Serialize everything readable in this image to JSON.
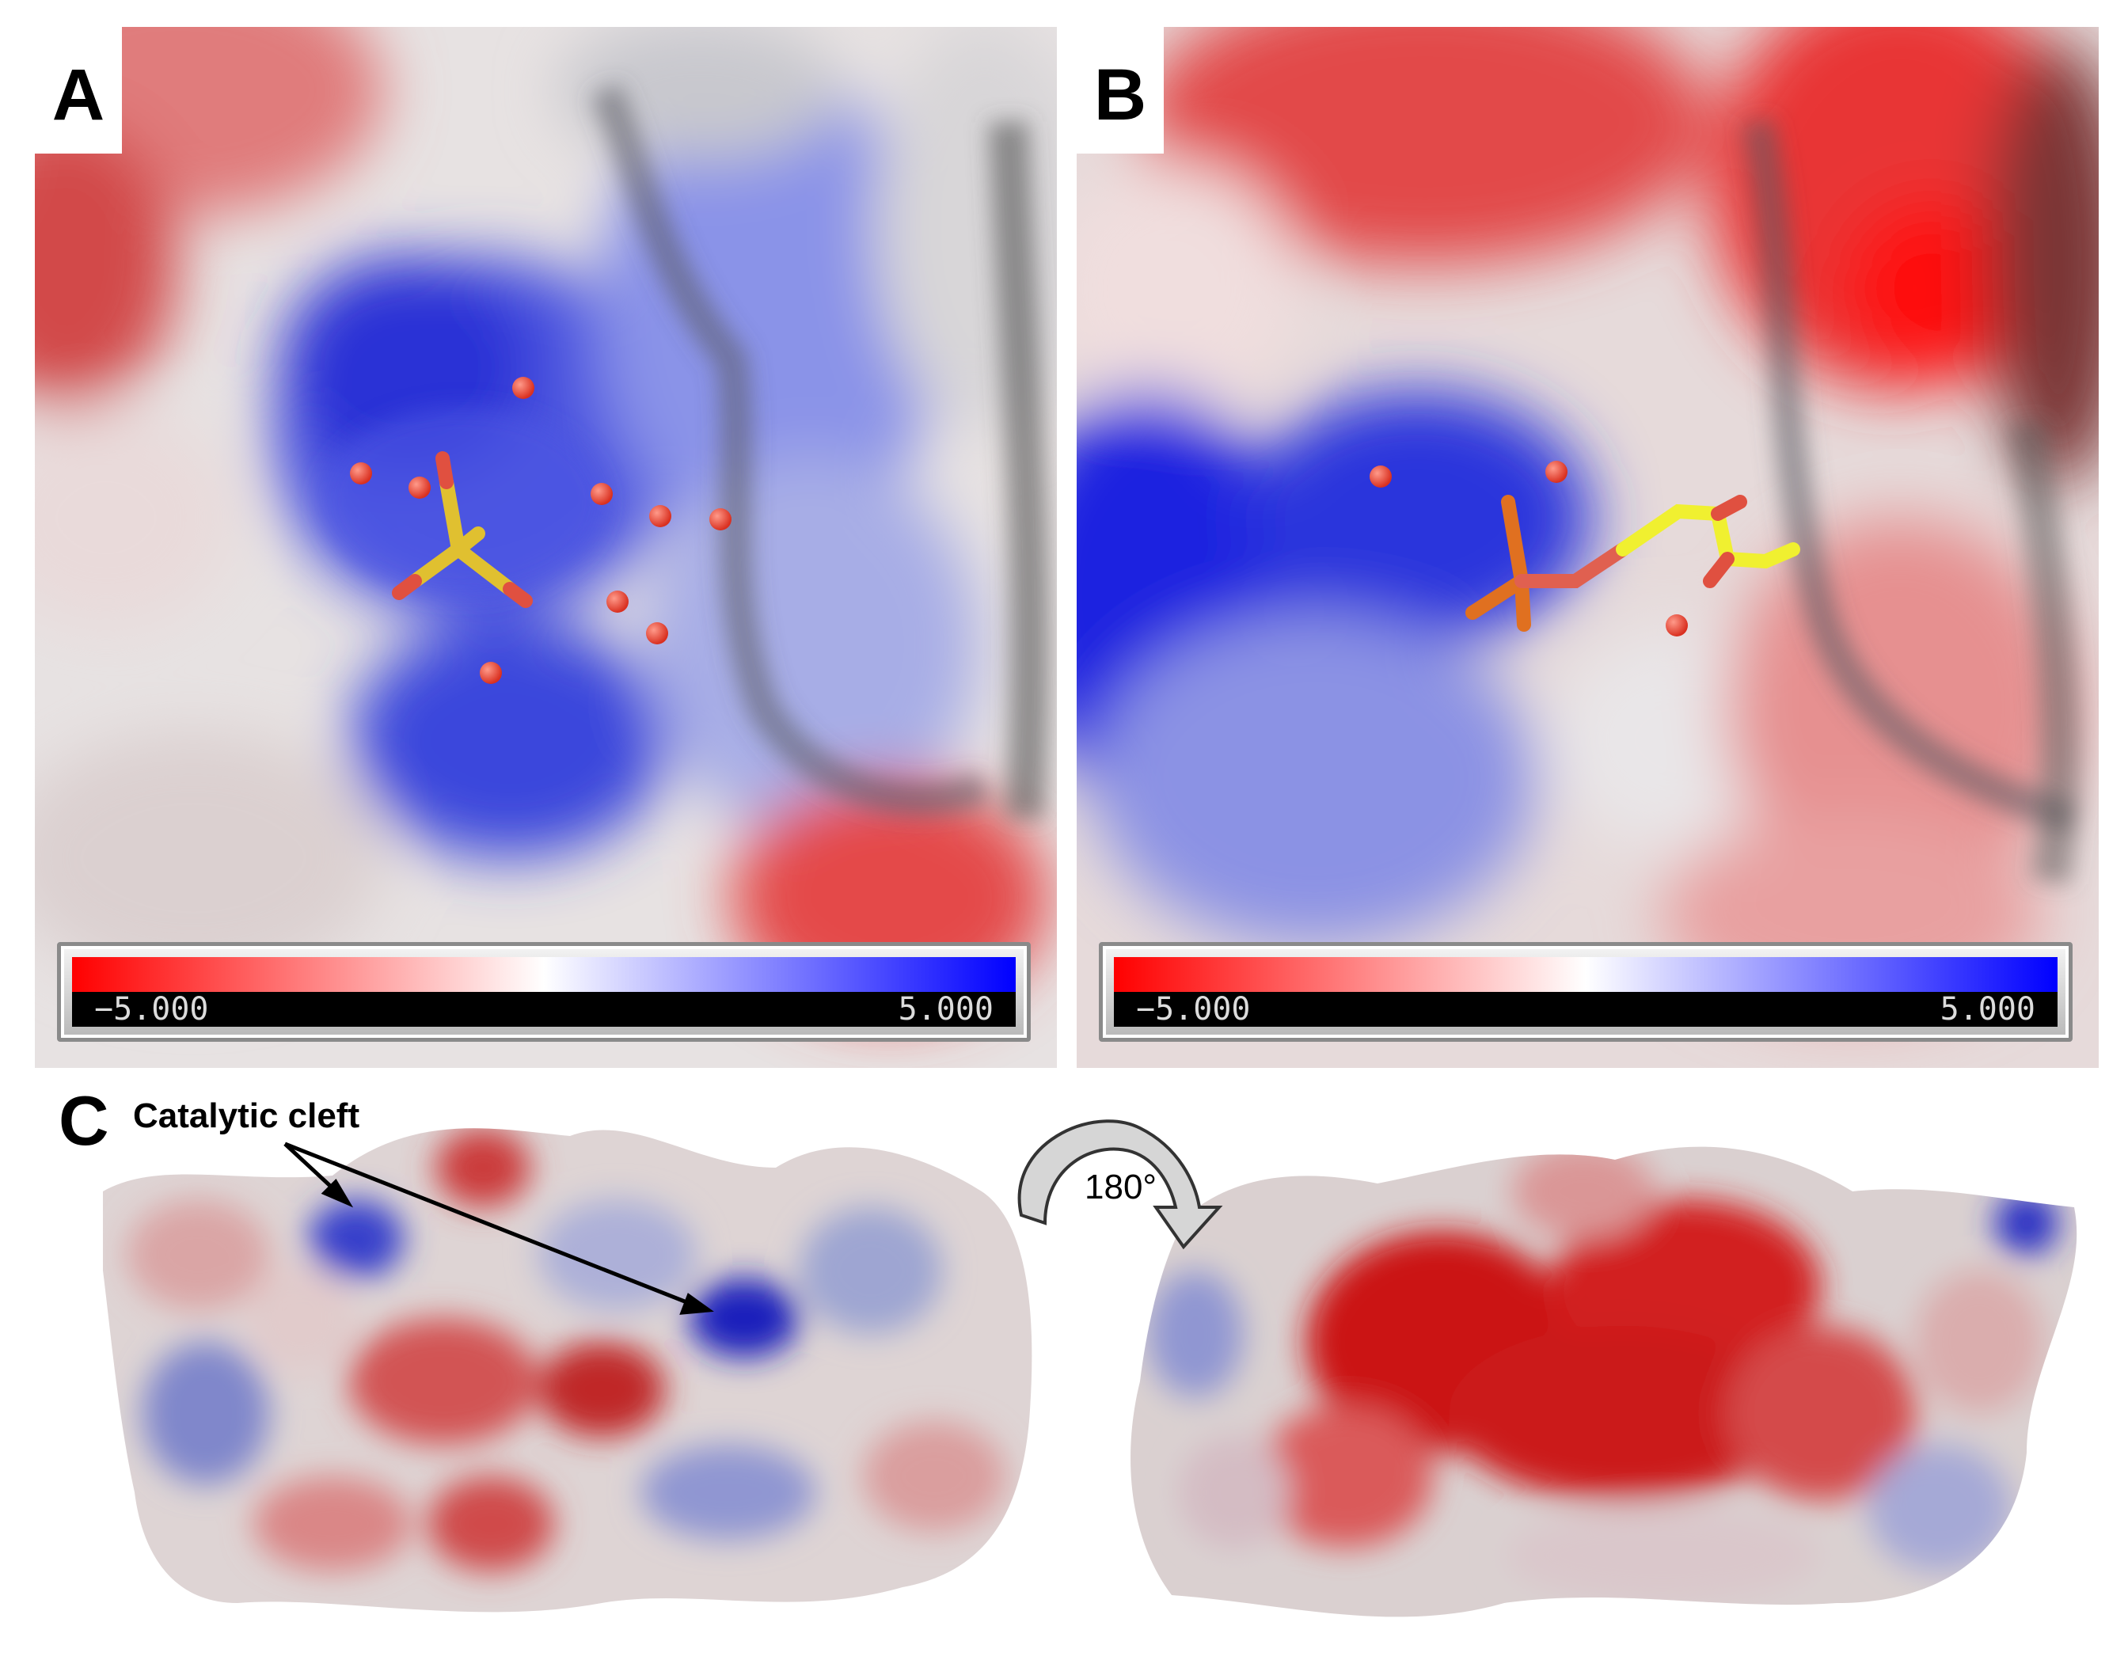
{
  "panels": {
    "a": {
      "label": "A"
    },
    "b": {
      "label": "B"
    },
    "c": {
      "label": "C"
    }
  },
  "scale_bar": {
    "min_label": "−5.000",
    "max_label": "5.000",
    "colors": {
      "negative": "#ff0000",
      "neutral": "#ffffff",
      "positive": "#0000ff"
    }
  },
  "annotations": {
    "cleft": "Catalytic cleft",
    "rotation": "180°"
  }
}
